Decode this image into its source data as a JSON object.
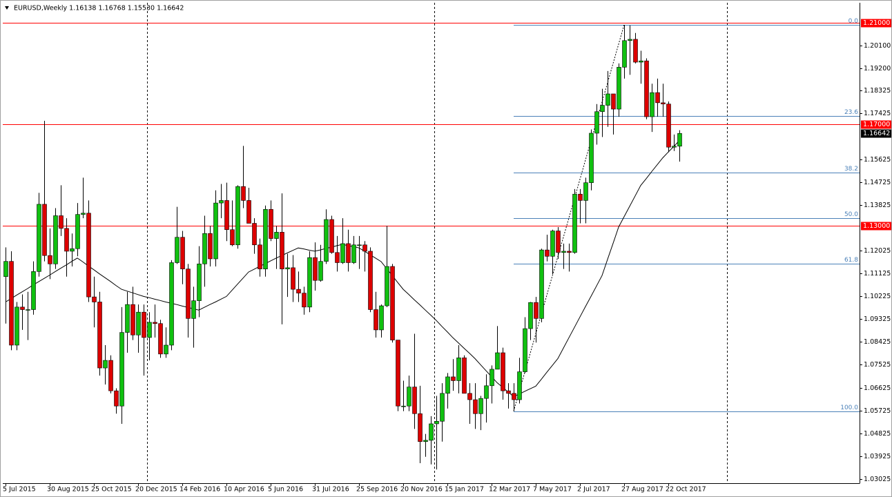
{
  "chart_data": {
    "type": "candlestick",
    "title": "EURUSD,Weekly  1.16138 1.16768 1.15530 1.16642",
    "categories": [
      "5 Jul 2015",
      null,
      null,
      null,
      null,
      null,
      null,
      null,
      "30 Aug 2015",
      null,
      null,
      null,
      null,
      null,
      null,
      null,
      "25 Oct 2015",
      null,
      null,
      null,
      null,
      null,
      null,
      null,
      "20 Dec 2015",
      null,
      null,
      null,
      null,
      null,
      null,
      null,
      "14 Feb 2016",
      null,
      null,
      null,
      null,
      null,
      null,
      null,
      "10 Apr 2016",
      null,
      null,
      null,
      null,
      null,
      null,
      null,
      "5 Jun 2016",
      null,
      null,
      null,
      null,
      null,
      null,
      null,
      "31 Jul 2016",
      null,
      null,
      null,
      null,
      null,
      null,
      null,
      "25 Sep 2016",
      null,
      null,
      null,
      null,
      null,
      null,
      null,
      "20 Nov 2016",
      null,
      null,
      null,
      null,
      null,
      null,
      null,
      "15 Jan 2017",
      null,
      null,
      null,
      null,
      null,
      null,
      null,
      "12 Mar 2017",
      null,
      null,
      null,
      null,
      null,
      null,
      null,
      "7 May 2017",
      null,
      null,
      null,
      null,
      null,
      null,
      null,
      "2 Jul 2017",
      null,
      null,
      null,
      null,
      null,
      null,
      null,
      "27 Aug 2017",
      null,
      null,
      null,
      null,
      null,
      null,
      null,
      "22 Oct 2017",
      null,
      null
    ],
    "open": [
      1.11,
      1.116,
      1.083,
      1.098,
      1.097,
      1.097,
      1.112,
      1.1385,
      1.1183,
      1.115,
      1.134,
      1.129,
      1.12,
      1.121,
      1.1345,
      1.135,
      1.102,
      1.1,
      1.074,
      1.077,
      1.065,
      1.059,
      1.088,
      1.099,
      1.087,
      1.096,
      1.086,
      1.092,
      1.0915,
      1.0795,
      1.083,
      1.1155,
      1.1255,
      1.113,
      1.0935,
      1.1005,
      1.115,
      1.127,
      1.117,
      1.139,
      1.14,
      1.1285,
      1.1225,
      1.1455,
      1.14,
      1.131,
      1.1225,
      1.113,
      1.1365,
      1.125,
      1.1275,
      1.113,
      1.1135,
      1.105,
      1.1035,
      1.098,
      1.1175,
      1.1085,
      1.116,
      1.1325,
      1.1195,
      1.1155,
      1.123,
      1.1155,
      1.1225,
      1.1225,
      1.12,
      1.097,
      1.089,
      1.0985,
      1.114,
      1.085,
      1.059,
      1.059,
      1.0665,
      1.056,
      1.045,
      1.0455,
      1.052,
      1.053,
      1.064,
      1.0705,
      1.069,
      1.078,
      1.064,
      1.0615,
      1.056,
      1.062,
      1.067,
      1.0735,
      1.08,
      1.065,
      1.064,
      1.0615,
      1.0725,
      1.0895,
      1.0998,
      1.0935,
      1.1205,
      1.118,
      1.128,
      1.1195,
      1.12,
      1.1195,
      1.1425,
      1.14,
      1.147,
      1.1665,
      1.175,
      1.1775,
      1.182,
      1.176,
      1.1925,
      1.203,
      1.2035,
      1.1945,
      1.195,
      1.173,
      1.1825,
      1.1785,
      1.178,
      1.161,
      1.16138
    ],
    "high": [
      1.1215,
      1.12,
      1.1,
      1.103,
      1.104,
      1.116,
      1.143,
      1.1714,
      1.129,
      1.137,
      1.146,
      1.133,
      1.127,
      1.139,
      1.149,
      1.14,
      1.11,
      1.104,
      1.083,
      1.079,
      1.066,
      1.098,
      1.104,
      1.106,
      1.099,
      1.099,
      1.096,
      1.099,
      1.093,
      1.09,
      1.1165,
      1.1375,
      1.128,
      1.115,
      1.106,
      1.122,
      1.134,
      1.13,
      1.144,
      1.1465,
      1.147,
      1.14,
      1.146,
      1.1615,
      1.145,
      1.133,
      1.125,
      1.138,
      1.14,
      1.13,
      1.1428,
      1.119,
      1.1185,
      1.112,
      1.106,
      1.12,
      1.1235,
      1.1225,
      1.1365,
      1.134,
      1.126,
      1.133,
      1.1285,
      1.126,
      1.126,
      1.124,
      1.1215,
      1.104,
      1.099,
      1.13,
      1.115,
      1.085,
      1.069,
      1.071,
      1.0875,
      1.067,
      1.048,
      1.055,
      1.063,
      1.068,
      1.072,
      1.0775,
      1.083,
      1.079,
      1.068,
      1.068,
      1.063,
      1.0715,
      1.075,
      1.0905,
      1.082,
      1.068,
      1.068,
      1.078,
      1.094,
      1.1,
      1.102,
      1.121,
      1.1265,
      1.1285,
      1.1295,
      1.123,
      1.123,
      1.1445,
      1.1445,
      1.149,
      1.168,
      1.178,
      1.184,
      1.191,
      1.182,
      1.194,
      1.2092,
      1.209,
      1.206,
      1.199,
      1.196,
      1.186,
      1.188,
      1.186,
      1.179,
      1.166,
      1.16768
    ],
    "low": [
      1.0915,
      1.081,
      1.081,
      1.089,
      1.085,
      1.095,
      1.11,
      1.116,
      1.109,
      1.113,
      1.126,
      1.11,
      1.114,
      1.118,
      1.133,
      1.1,
      1.09,
      1.071,
      1.0675,
      1.064,
      1.056,
      1.052,
      1.08,
      1.085,
      1.08,
      1.071,
      1.077,
      1.086,
      1.078,
      1.078,
      1.081,
      1.115,
      1.107,
      1.086,
      1.082,
      1.094,
      1.106,
      1.114,
      1.114,
      1.133,
      1.124,
      1.122,
      1.121,
      1.137,
      1.131,
      1.119,
      1.11,
      1.11,
      1.124,
      1.113,
      1.0912,
      1.102,
      1.1,
      1.1,
      1.095,
      1.096,
      1.1045,
      1.108,
      1.115,
      1.119,
      1.112,
      1.115,
      1.112,
      1.115,
      1.113,
      1.112,
      1.096,
      1.086,
      1.086,
      1.098,
      1.084,
      1.057,
      1.057,
      1.057,
      1.05,
      1.0365,
      1.039,
      1.036,
      1.034,
      1.045,
      1.058,
      1.065,
      1.064,
      1.064,
      1.052,
      1.05,
      1.0495,
      1.0525,
      1.06,
      1.0735,
      1.0615,
      1.058,
      1.057,
      1.06,
      1.072,
      1.085,
      1.084,
      1.092,
      1.116,
      1.111,
      1.117,
      1.113,
      1.112,
      1.119,
      1.131,
      1.131,
      1.144,
      1.162,
      1.165,
      1.169,
      1.166,
      1.173,
      1.188,
      1.1895,
      1.194,
      1.186,
      1.172,
      1.167,
      1.173,
      1.173,
      1.159,
      1.1595,
      1.1553
    ],
    "close": [
      1.116,
      1.083,
      1.098,
      1.097,
      1.097,
      1.112,
      1.1385,
      1.1183,
      1.115,
      1.134,
      1.129,
      1.12,
      1.121,
      1.1345,
      1.135,
      1.102,
      1.1,
      1.074,
      1.077,
      1.065,
      1.059,
      1.088,
      1.099,
      1.087,
      1.096,
      1.086,
      1.092,
      1.0915,
      1.0795,
      1.083,
      1.1155,
      1.1255,
      1.113,
      1.0935,
      1.1005,
      1.115,
      1.127,
      1.117,
      1.139,
      1.14,
      1.1285,
      1.1225,
      1.1455,
      1.14,
      1.131,
      1.1225,
      1.113,
      1.1365,
      1.125,
      1.1275,
      1.113,
      1.1135,
      1.105,
      1.1035,
      1.098,
      1.1175,
      1.1085,
      1.116,
      1.1325,
      1.1195,
      1.1155,
      1.123,
      1.1155,
      1.1225,
      1.1225,
      1.12,
      1.097,
      1.089,
      1.0985,
      1.114,
      1.085,
      1.059,
      1.059,
      1.0665,
      1.056,
      1.045,
      1.0455,
      1.052,
      1.053,
      1.064,
      1.0705,
      1.069,
      1.078,
      1.064,
      1.0615,
      1.056,
      1.062,
      1.067,
      1.0735,
      1.08,
      1.065,
      1.064,
      1.0615,
      1.0725,
      1.0895,
      1.0998,
      1.0935,
      1.1205,
      1.118,
      1.128,
      1.1195,
      1.12,
      1.1195,
      1.1425,
      1.14,
      1.147,
      1.1665,
      1.175,
      1.1775,
      1.182,
      1.176,
      1.1925,
      1.203,
      1.2035,
      1.1945,
      1.195,
      1.173,
      1.1825,
      1.1785,
      1.178,
      1.161,
      1.1614,
      1.16642
    ],
    "colors": {
      "up": "#10c010",
      "down": "#dd0000",
      "wick": "#000000"
    },
    "ma": {
      "color": "#000000",
      "values": [
        1.1,
        1.1013,
        1.1027,
        1.104,
        1.1053,
        1.1067,
        1.108,
        1.1093,
        1.1106,
        1.112,
        1.1133,
        1.1146,
        1.116,
        1.1173,
        1.1158,
        1.1142,
        1.1127,
        1.1111,
        1.1096,
        1.1081,
        1.1065,
        1.105,
        1.1043,
        1.1036,
        1.1029,
        1.1022,
        1.1017,
        1.1011,
        1.1006,
        1.1,
        1.0995,
        1.099,
        1.0984,
        1.0979,
        1.0973,
        1.0968,
        1.0979,
        1.099,
        1.1,
        1.1011,
        1.1022,
        1.1046,
        1.107,
        1.1094,
        1.1118,
        1.1129,
        1.114,
        1.1151,
        1.1162,
        1.1173,
        1.1183,
        1.1193,
        1.1203,
        1.1213,
        1.1209,
        1.1204,
        1.12,
        1.1205,
        1.1211,
        1.1216,
        1.1222,
        1.1227,
        1.1222,
        1.1218,
        1.1213,
        1.12,
        1.1186,
        1.1173,
        1.1159,
        1.1132,
        1.1105,
        1.1077,
        1.105,
        1.103,
        1.1009,
        1.0989,
        1.0968,
        1.0948,
        1.0927,
        1.0904,
        1.0882,
        1.0859,
        1.0839,
        1.0818,
        1.0798,
        1.0777,
        1.0753,
        1.0729,
        1.0706,
        1.0682,
        1.0664,
        1.0645,
        1.0627,
        1.0637,
        1.0648,
        1.0658,
        1.0668,
        1.0695,
        1.0723,
        1.075,
        1.0777,
        1.0818,
        1.0859,
        1.09,
        1.0941,
        1.0982,
        1.1022,
        1.1063,
        1.1104,
        1.1168,
        1.1231,
        1.1295,
        1.1336,
        1.1377,
        1.1418,
        1.1459,
        1.1486,
        1.1514,
        1.1541,
        1.1568,
        1.1591,
        1.1613,
        1.1636
      ]
    },
    "ylim": [
      1.0286,
      1.2179
    ],
    "yticks": [
      {
        "value": 1.201,
        "label": "1.20100"
      },
      {
        "value": 1.192,
        "label": "1.19200"
      },
      {
        "value": 1.18325,
        "label": "1.18325"
      },
      {
        "value": 1.17425,
        "label": "1.17425"
      },
      {
        "value": 1.15625,
        "label": "1.15625"
      },
      {
        "value": 1.14725,
        "label": "1.14725"
      },
      {
        "value": 1.13825,
        "label": "1.13825"
      },
      {
        "value": 1.12025,
        "label": "1.12025"
      },
      {
        "value": 1.11125,
        "label": "1.11125"
      },
      {
        "value": 1.10225,
        "label": "1.10225"
      },
      {
        "value": 1.09325,
        "label": "1.09325"
      },
      {
        "value": 1.08425,
        "label": "1.08425"
      },
      {
        "value": 1.07525,
        "label": "1.07525"
      },
      {
        "value": 1.06625,
        "label": "1.06625"
      },
      {
        "value": 1.05725,
        "label": "1.05725"
      },
      {
        "value": 1.04825,
        "label": "1.04825"
      },
      {
        "value": 1.03925,
        "label": "1.03925"
      },
      {
        "value": 1.03025,
        "label": "1.03025"
      }
    ],
    "hlines": [
      {
        "value": 1.21,
        "label": "1.21000"
      },
      {
        "value": 1.17,
        "label": "1.17000"
      },
      {
        "value": 1.13,
        "label": "1.13000"
      }
    ],
    "hline_color": "#ff0000",
    "fib": {
      "color": "#4a80b8",
      "from_index": 92,
      "to_index": 112,
      "low": 1.057,
      "high": 1.2092,
      "levels": [
        {
          "value": 0,
          "label": "0.0"
        },
        23.6,
        38.2,
        {
          "value": 50,
          "label": "50.0"
        },
        61.8,
        {
          "value": 100,
          "label": "100.0"
        }
      ]
    }
  }
}
